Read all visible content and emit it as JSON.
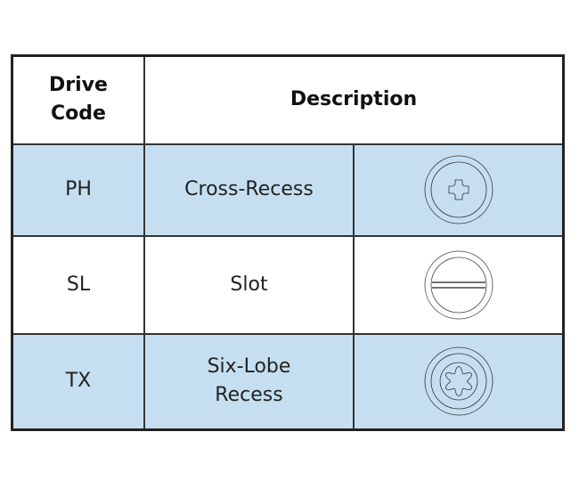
{
  "header": {
    "code": "Drive\nCode",
    "description": "Description"
  },
  "rows": [
    {
      "code": "PH",
      "description": "Cross-Recess",
      "icon": "phillips-drive-icon",
      "shaded": true
    },
    {
      "code": "SL",
      "description": "Slot",
      "icon": "slotted-drive-icon",
      "shaded": false
    },
    {
      "code": "TX",
      "description": "Six-Lobe\nRecess",
      "icon": "torx-drive-icon",
      "shaded": true
    }
  ],
  "colors": {
    "row_shade": "#c5dff1",
    "border": "#222222"
  }
}
